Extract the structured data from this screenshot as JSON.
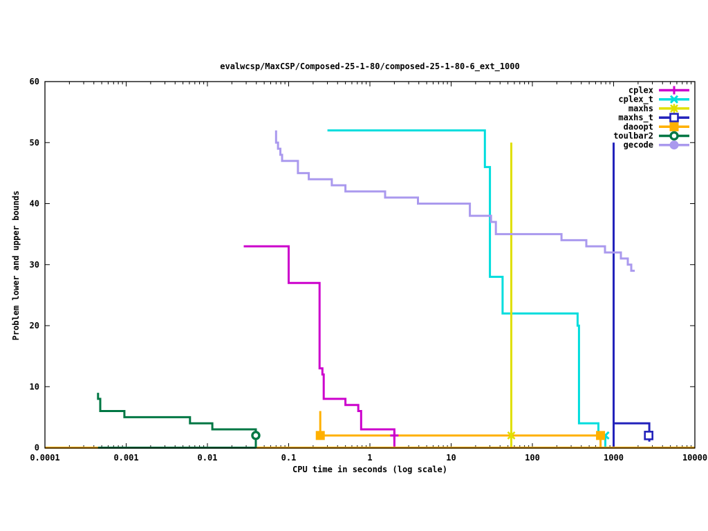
{
  "title": "evalwcsp/MaxCSP/Composed-25-1-80/composed-25-1-80-6_ext_1000",
  "chart_data": {
    "type": "line",
    "title": "evalwcsp/MaxCSP/Composed-25-1-80/composed-25-1-80-6_ext_1000",
    "xlabel": "CPU time in seconds (log scale)",
    "ylabel": "Problem lower and upper bounds",
    "x_scale": "log",
    "xlim": [
      0.0001,
      10000
    ],
    "ylim": [
      0,
      60
    ],
    "x_ticks": [
      "0.0001",
      "0.001",
      "0.01",
      "0.1",
      "1",
      "10",
      "100",
      "1000",
      "10000"
    ],
    "y_ticks": [
      "0",
      "10",
      "20",
      "30",
      "40",
      "50",
      "60"
    ],
    "grid": false,
    "legend_position": "top-right",
    "series": [
      {
        "name": "cplex",
        "color": "#cc00cc",
        "marker": "plus",
        "segments": [
          [
            [
              0.028,
              33
            ],
            [
              0.1,
              33
            ],
            [
              0.1,
              27
            ],
            [
              0.24,
              27
            ],
            [
              0.24,
              13
            ],
            [
              0.26,
              13
            ],
            [
              0.26,
              12
            ],
            [
              0.27,
              12
            ],
            [
              0.27,
              8
            ],
            [
              0.5,
              8
            ],
            [
              0.5,
              7
            ],
            [
              0.72,
              7
            ],
            [
              0.72,
              6
            ],
            [
              0.78,
              6
            ],
            [
              0.78,
              3
            ],
            [
              2.0,
              3
            ],
            [
              2.0,
              0
            ]
          ]
        ],
        "markers": [
          [
            2.0,
            2
          ]
        ]
      },
      {
        "name": "cplex_t",
        "color": "#00dddd",
        "marker": "cross",
        "segments": [
          [
            [
              0.3,
              52
            ],
            [
              26,
              52
            ],
            [
              26,
              46
            ],
            [
              30,
              46
            ],
            [
              30,
              28
            ],
            [
              43,
              28
            ],
            [
              43,
              22
            ],
            [
              360,
              22
            ],
            [
              360,
              20
            ],
            [
              375,
              20
            ],
            [
              375,
              4
            ],
            [
              650,
              4
            ],
            [
              650,
              2
            ],
            [
              790,
              2
            ],
            [
              790,
              0
            ]
          ]
        ],
        "markers": [
          [
            790,
            2
          ]
        ]
      },
      {
        "name": "maxhs",
        "color": "#e0e000",
        "marker": "star",
        "segments": [
          [
            [
              55,
              50
            ],
            [
              55,
              0
            ]
          ]
        ],
        "markers": [
          [
            55,
            2
          ]
        ]
      },
      {
        "name": "maxhs_t",
        "color": "#2222bb",
        "marker": "square-open",
        "segments": [
          [
            [
              1000,
              50
            ],
            [
              1000,
              0
            ]
          ],
          [
            [
              1000,
              4
            ],
            [
              2750,
              4
            ],
            [
              2750,
              1
            ]
          ]
        ],
        "markers": [
          [
            2700,
            2
          ]
        ]
      },
      {
        "name": "daoopt",
        "color": "#ffb000",
        "marker": "square",
        "segments": [
          [
            [
              0.0001,
              0
            ],
            [
              10000,
              0
            ]
          ],
          [
            [
              0.245,
              6
            ],
            [
              0.245,
              2
            ],
            [
              690,
              2
            ],
            [
              690,
              0
            ]
          ]
        ],
        "markers": [
          [
            0.245,
            2
          ],
          [
            690,
            2
          ]
        ]
      },
      {
        "name": "toulbar2",
        "color": "#007744",
        "marker": "circle-open",
        "segments": [
          [
            [
              0.00045,
              9
            ],
            [
              0.00045,
              8
            ],
            [
              0.00048,
              8
            ],
            [
              0.00048,
              6
            ],
            [
              0.00095,
              6
            ],
            [
              0.00095,
              5
            ],
            [
              0.0061,
              5
            ],
            [
              0.0061,
              4
            ],
            [
              0.0115,
              4
            ],
            [
              0.0115,
              3
            ],
            [
              0.0394,
              3
            ],
            [
              0.0394,
              0
            ]
          ],
          [
            [
              0.00045,
              0
            ],
            [
              0.0394,
              0
            ]
          ]
        ],
        "markers": [
          [
            0.0394,
            2
          ]
        ]
      },
      {
        "name": "gecode",
        "color": "#aa99ee",
        "marker": "circle",
        "segments": [
          [
            [
              0.07,
              52
            ],
            [
              0.07,
              50
            ],
            [
              0.074,
              50
            ],
            [
              0.074,
              49
            ],
            [
              0.079,
              49
            ],
            [
              0.079,
              48
            ],
            [
              0.083,
              48
            ],
            [
              0.083,
              47
            ],
            [
              0.13,
              47
            ],
            [
              0.13,
              45
            ],
            [
              0.177,
              45
            ],
            [
              0.177,
              44
            ],
            [
              0.34,
              44
            ],
            [
              0.34,
              43
            ],
            [
              0.5,
              43
            ],
            [
              0.5,
              42
            ],
            [
              1.54,
              42
            ],
            [
              1.54,
              41
            ],
            [
              3.9,
              41
            ],
            [
              3.9,
              40
            ],
            [
              17,
              40
            ],
            [
              17,
              38
            ],
            [
              31,
              38
            ],
            [
              31,
              37
            ],
            [
              35.5,
              37
            ],
            [
              35.5,
              35
            ],
            [
              228,
              35
            ],
            [
              228,
              34
            ],
            [
              461,
              34
            ],
            [
              461,
              33
            ],
            [
              783,
              33
            ],
            [
              783,
              32
            ],
            [
              1228,
              32
            ],
            [
              1228,
              31
            ],
            [
              1494,
              31
            ],
            [
              1494,
              30
            ],
            [
              1648,
              30
            ],
            [
              1648,
              29
            ],
            [
              1820,
              29
            ]
          ]
        ],
        "markers": []
      }
    ]
  }
}
